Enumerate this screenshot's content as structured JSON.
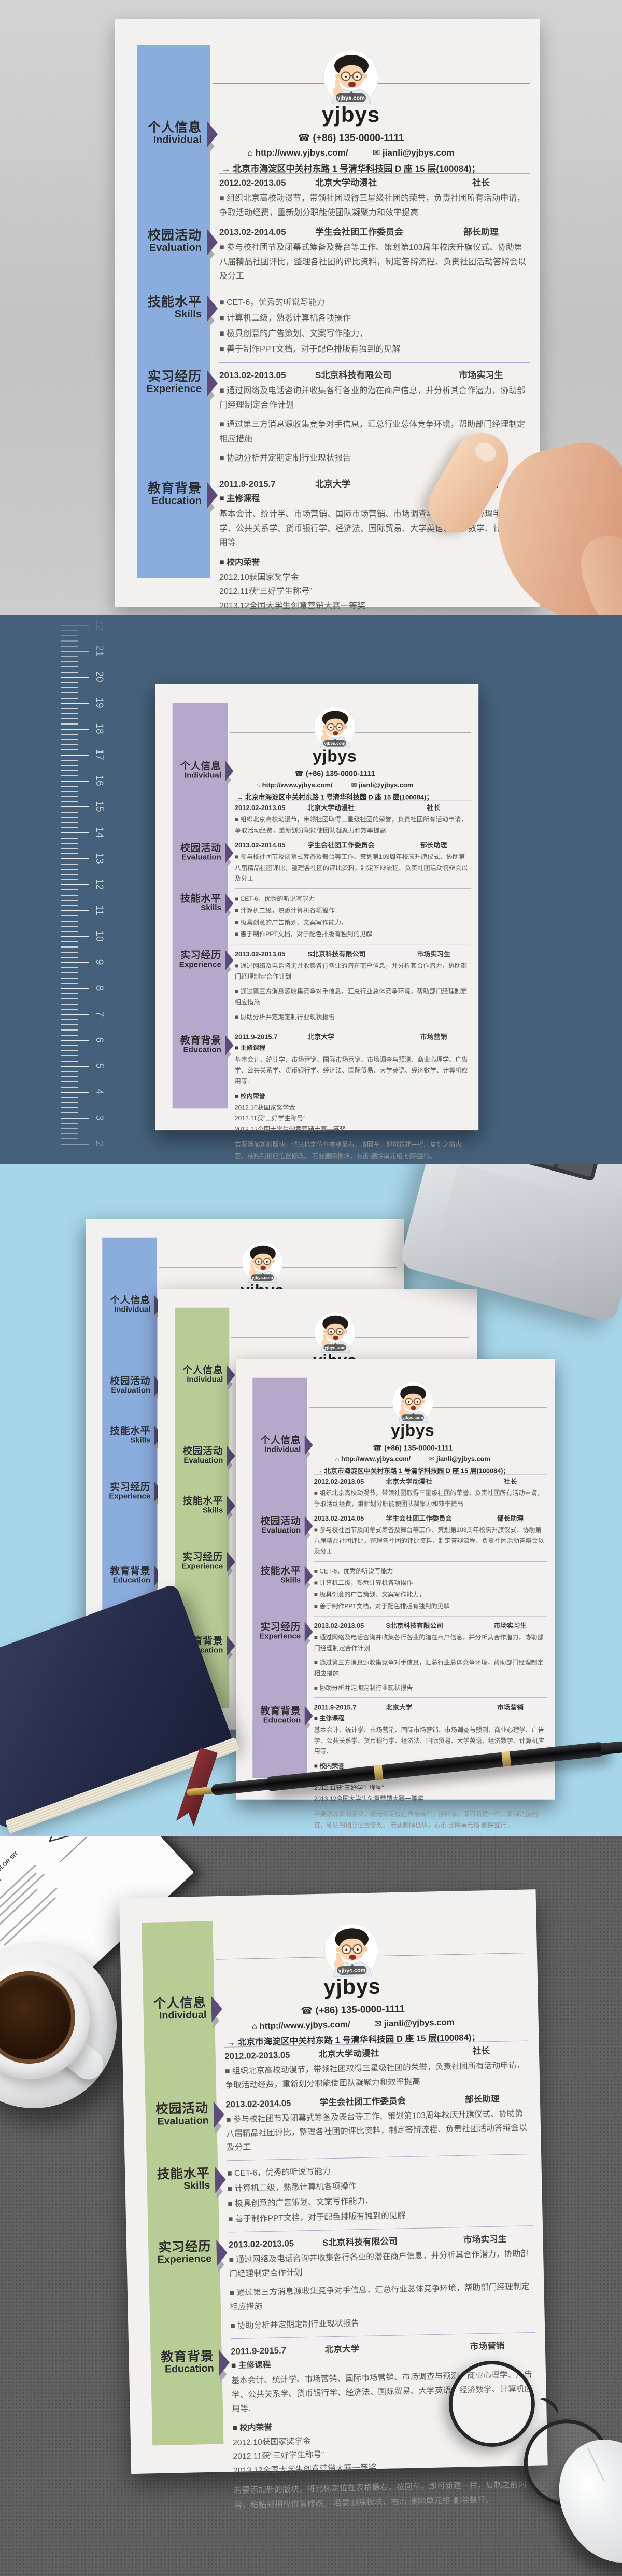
{
  "resume": {
    "name": "yjbys",
    "badge": "yjbys.com",
    "phone_icon": "☎",
    "phone": "(+86) 135-0000-1111",
    "web_icon": "⌂",
    "website": "http://www.yjbys.com/",
    "email_icon": "✉",
    "email": "jianli@yjbys.com",
    "address_icon": "→",
    "address": "北京市海淀区中关村东路 1 号清华科技园 D 座 15 层(100084)；",
    "sidebar": [
      {
        "zh": "个人信息",
        "en": "Individual"
      },
      {
        "zh": "校园活动",
        "en": "Evaluation"
      },
      {
        "zh": "技能水平",
        "en": "Skills"
      },
      {
        "zh": "实习经历",
        "en": "Experience"
      },
      {
        "zh": "教育背景",
        "en": "Education"
      }
    ],
    "campus": {
      "entries": [
        {
          "date": "2012.02-2013.05",
          "org": "北京大学动漫社",
          "role": "社长",
          "desc": "■ 组织北京高校动漫节，带领社团取得三星级社团的荣誉，负责社团所有活动申请，争取活动经费，重新划分职能使团队凝聚力和效率提高"
        },
        {
          "date": "2013.02-2014.05",
          "org": "学生会社团工作委员会",
          "role": "部长助理",
          "desc": "■ 参与校社团节及闭幕式筹备及舞台等工作、策划第103周年校庆升旗仪式、协助第八届精品社团评比，整理各社团的评比资料，制定答辩流程、负责社团活动答辩会以及分工"
        }
      ]
    },
    "skills": [
      "■ CET-6，优秀的听说写能力",
      "■ 计算机二级，熟悉计算机各项操作",
      "■ 极具创意的广告策划、文案写作能力，",
      "■ 善于制作PPT文档，对于配色排版有独到的见解"
    ],
    "experience": {
      "date": "2013.02-2013.05",
      "org": "S北京科技有限公司",
      "role": "市场实习生",
      "bullets": [
        "■ 通过网络及电话咨询并收集各行各业的潜在商户信息，并分析其合作潜力，协助部门经理制定合作计划",
        "■ 通过第三方消息源收集竞争对手信息，汇总行业总体竞争环境，帮助部门经理制定相应措施",
        "■ 协助分析并定期定制行业现状报告"
      ]
    },
    "education": {
      "date": "2011.9-2015.7",
      "org": "北京大学",
      "role": "市场营销",
      "courses_label": "■ 主修课程",
      "courses": "基本会计、统计学、市场营销、国际市场营销、市场调查与预测、商业心理学、广告学、公共关系学、货币银行学、经济法、国际贸易、大学英语、经济数学、计算机应用等.",
      "honors_label": "■ 校内荣誉",
      "honors": [
        "2012.10获国家奖学金",
        "2012.11获“三好学生称号”",
        "2013.12全国大学生创意营销大赛一等奖"
      ],
      "note": "若要添加新的版块，将光标定位在表格最右，按回车，即可新建一栏。复制之前内容，粘贴到相应位置修改。 若要删除板块，右击-删除单元格-删除整行。"
    }
  },
  "ruler": {
    "numbers": [
      22,
      21,
      20,
      19,
      18,
      17,
      16,
      15,
      14,
      13,
      12,
      11,
      10,
      9,
      8,
      7,
      6,
      5,
      4,
      3,
      2
    ]
  },
  "letter": {
    "heading": "LOREM IPSUM DOLOR SIT AMET, CONSEC"
  },
  "colors": {
    "sidebar_blue": "#8badde",
    "sidebar_lavender": "#b6a8ca",
    "sidebar_green": "#b8cc96",
    "divider": "#b3a6c7",
    "arrow": "#5c4b79",
    "bg_gray": "#cbcbcb",
    "bg_slate": "#45607a",
    "bg_lightblue": "#a7d6ea",
    "bg_desk": "#616161"
  }
}
